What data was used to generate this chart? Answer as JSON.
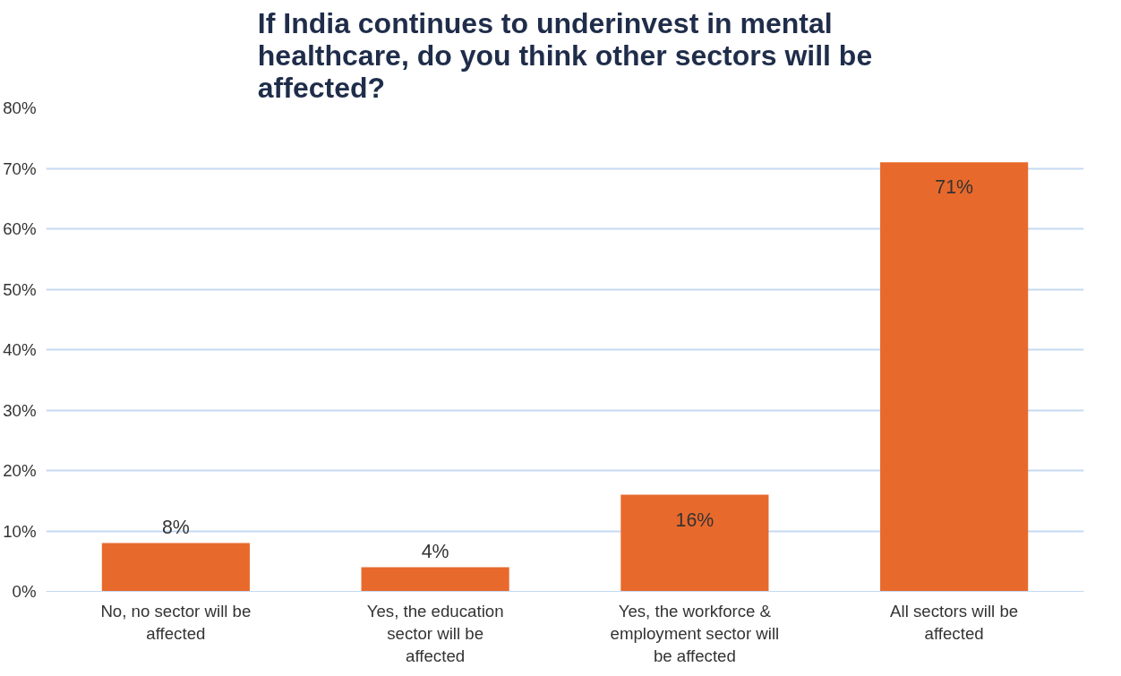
{
  "chart_data": {
    "type": "bar",
    "title": "If India continues to underinvest in mental healthcare, do you think other sectors will be affected?",
    "categories": [
      "No, no sector will be affected",
      "Yes, the education sector will be affected",
      "Yes, the workforce & employment sector will be affected",
      "All sectors will be affected"
    ],
    "values": [
      8,
      4,
      16,
      71
    ],
    "value_labels": [
      "8%",
      "4%",
      "16%",
      "71%"
    ],
    "color": "#e8692c",
    "ylim": [
      0,
      80
    ],
    "yticks": [
      {
        "value": 0,
        "label": "0%"
      },
      {
        "value": 10,
        "label": "10%"
      },
      {
        "value": 20,
        "label": "20%"
      },
      {
        "value": 30,
        "label": "30%"
      },
      {
        "value": 40,
        "label": "40%"
      },
      {
        "value": 50,
        "label": "50%"
      },
      {
        "value": 60,
        "label": "60%"
      },
      {
        "value": 70,
        "label": "70%"
      },
      {
        "value": 80,
        "label": "80%"
      }
    ],
    "grid": "y"
  }
}
